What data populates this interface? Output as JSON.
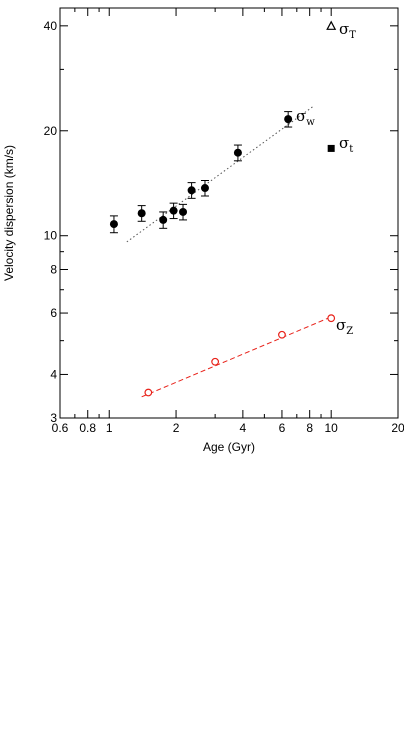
{
  "chart_data": {
    "type": "scatter",
    "xlabel": "Age (Gyr)",
    "ylabel": "Velocity dispersion (km/s)",
    "x_scale": "log",
    "y_scale": "log",
    "xlim": [
      0.6,
      20
    ],
    "ylim": [
      3,
      45
    ],
    "x_ticks": [
      {
        "value": 0.6,
        "label": "0.6"
      },
      {
        "value": 0.8,
        "label": "0.8"
      },
      {
        "value": 1,
        "label": "1"
      },
      {
        "value": 2,
        "label": "2"
      },
      {
        "value": 4,
        "label": "4"
      },
      {
        "value": 6,
        "label": "6"
      },
      {
        "value": 8,
        "label": "8"
      },
      {
        "value": 10,
        "label": "10"
      },
      {
        "value": 20,
        "label": "20"
      }
    ],
    "y_ticks": [
      {
        "value": 3,
        "label": "3"
      },
      {
        "value": 4,
        "label": "4"
      },
      {
        "value": 6,
        "label": "6"
      },
      {
        "value": 8,
        "label": "8"
      },
      {
        "value": 10,
        "label": "10"
      },
      {
        "value": 20,
        "label": "20"
      },
      {
        "value": 40,
        "label": "40"
      }
    ],
    "grid": false,
    "series": [
      {
        "name": "σw",
        "label": "σ",
        "subscript": "w",
        "marker": "filled-circle",
        "color": "#000000",
        "points": [
          {
            "x": 1.05,
            "y": 10.8,
            "yerr": 0.6
          },
          {
            "x": 1.4,
            "y": 11.6,
            "yerr": 0.6
          },
          {
            "x": 1.75,
            "y": 11.1,
            "yerr": 0.6
          },
          {
            "x": 1.95,
            "y": 11.8,
            "yerr": 0.6
          },
          {
            "x": 2.15,
            "y": 11.7,
            "yerr": 0.6
          },
          {
            "x": 2.35,
            "y": 13.5,
            "yerr": 0.7
          },
          {
            "x": 2.7,
            "y": 13.7,
            "yerr": 0.7
          },
          {
            "x": 3.8,
            "y": 17.3,
            "yerr": 0.9
          },
          {
            "x": 6.4,
            "y": 21.6,
            "yerr": 1.1
          }
        ],
        "fit": {
          "x": [
            1.2,
            8.3
          ],
          "y": [
            9.6,
            23.5
          ],
          "style": "dotted",
          "color": "#555555"
        }
      },
      {
        "name": "σZ",
        "label": "σ",
        "subscript": "Z",
        "marker": "open-circle",
        "color": "#e8221a",
        "points": [
          {
            "x": 1.5,
            "y": 3.55
          },
          {
            "x": 3.0,
            "y": 4.35
          },
          {
            "x": 6.0,
            "y": 5.2
          },
          {
            "x": 10.0,
            "y": 5.8
          }
        ],
        "fit": {
          "x": [
            1.4,
            10.0
          ],
          "y": [
            3.45,
            5.85
          ],
          "style": "dashed",
          "color": "#e8221a"
        }
      },
      {
        "name": "σt",
        "label": "σ",
        "subscript": "t",
        "marker": "filled-square",
        "color": "#000000",
        "points": [
          {
            "x": 10.0,
            "y": 17.8
          }
        ]
      },
      {
        "name": "σT",
        "label": "σ",
        "subscript": "T",
        "marker": "open-triangle",
        "color": "#000000",
        "points": [
          {
            "x": 10.0,
            "y": 40.0
          }
        ]
      }
    ]
  }
}
